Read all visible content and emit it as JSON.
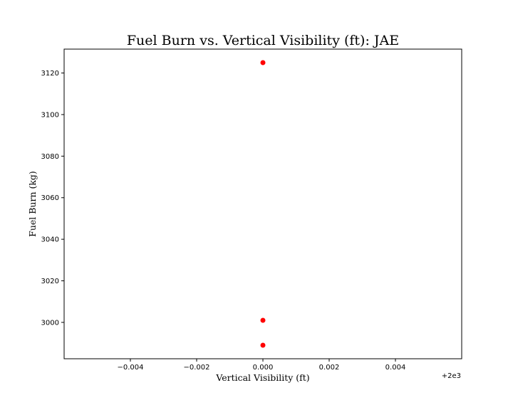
{
  "chart_data": {
    "type": "scatter",
    "title": "Fuel Burn vs. Vertical Visibility (ft): JAE",
    "xlabel": "Vertical Visibility (ft)",
    "ylabel": "Fuel Burn (kg)",
    "x_offset_label": "+2e3",
    "xlim": [
      -0.006,
      0.006
    ],
    "ylim": [
      2982.5,
      3131.5
    ],
    "x_ticks": [
      -0.004,
      -0.002,
      0.0,
      0.002,
      0.004
    ],
    "x_tick_labels": [
      "−0.004",
      "−0.002",
      "0.000",
      "0.002",
      "0.004"
    ],
    "y_ticks": [
      3000,
      3020,
      3040,
      3060,
      3080,
      3100,
      3120
    ],
    "y_tick_labels": [
      "3000",
      "3020",
      "3040",
      "3060",
      "3080",
      "3100",
      "3120"
    ],
    "grid": false,
    "marker_color": "#ff0000",
    "series": [
      {
        "x": [
          2000,
          2000,
          2000
        ],
        "y": [
          3125,
          3001,
          2989
        ]
      }
    ]
  }
}
